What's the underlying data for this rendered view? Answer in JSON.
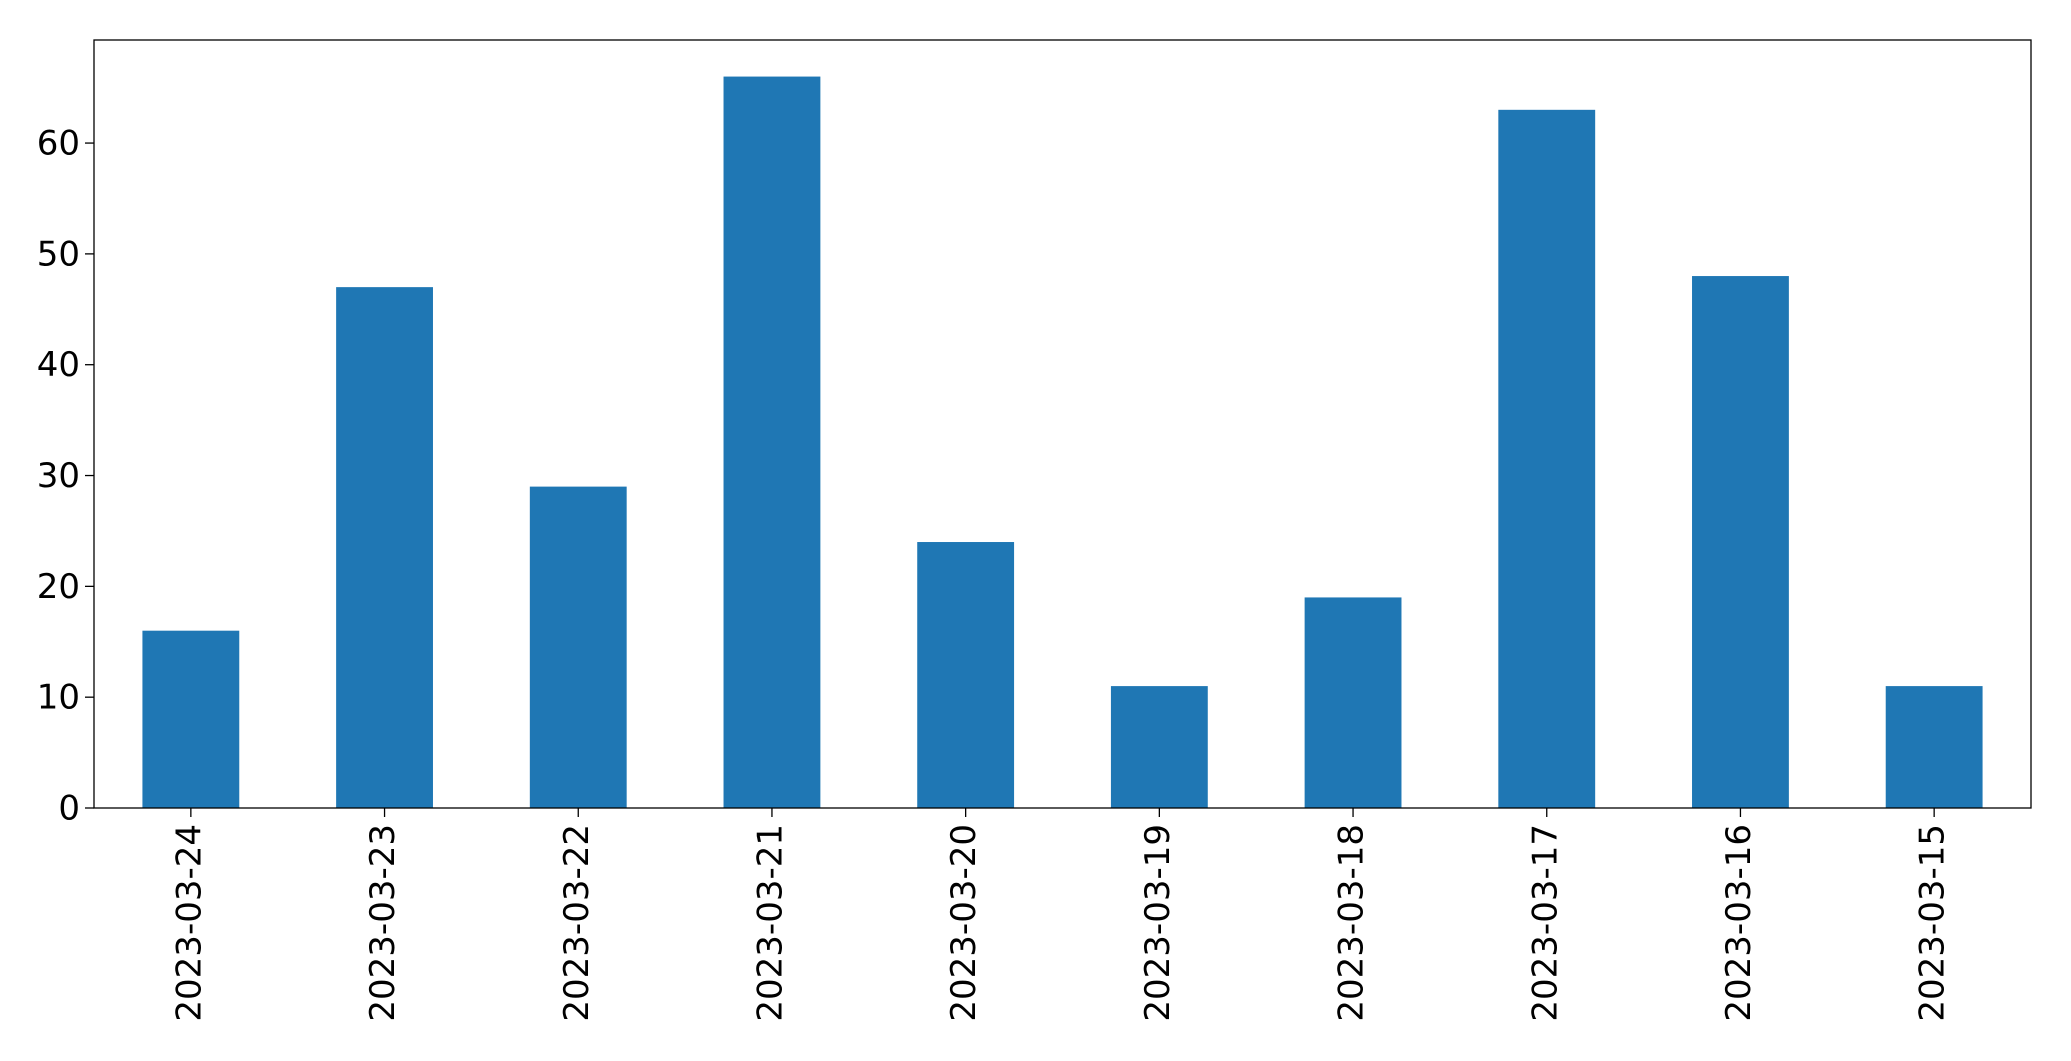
{
  "chart_data": {
    "type": "bar",
    "categories": [
      "2023-03-24",
      "2023-03-23",
      "2023-03-22",
      "2023-03-21",
      "2023-03-20",
      "2023-03-19",
      "2023-03-18",
      "2023-03-17",
      "2023-03-16",
      "2023-03-15"
    ],
    "values": [
      16,
      47,
      29,
      66,
      24,
      11,
      19,
      63,
      48,
      11
    ],
    "color": "#1f77b4",
    "ylim": [
      0,
      69.3
    ],
    "yticks": [
      0,
      10,
      20,
      30,
      40,
      50,
      60
    ],
    "grid": false
  }
}
